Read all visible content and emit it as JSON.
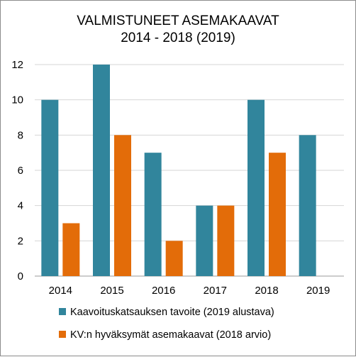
{
  "chart_data": {
    "type": "bar",
    "title_lines": [
      "VALMISTUNEET  ASEMAKAAVAT",
      "2014 - 2018 (2019)"
    ],
    "categories": [
      "2014",
      "2015",
      "2016",
      "2017",
      "2018",
      "2019"
    ],
    "series": [
      {
        "name": "Kaavoituskatsauksen tavoite (2019 alustava)",
        "color": "#31859c",
        "values": [
          10,
          12,
          7,
          4,
          10,
          8
        ]
      },
      {
        "name": "KV:n hyväksymät asemakaavat (2018 arvio)",
        "color": "#e36c09",
        "values": [
          3,
          8,
          2,
          4,
          7,
          null
        ]
      }
    ],
    "ylim": [
      0,
      12
    ],
    "yticks": [
      0,
      2,
      4,
      6,
      8,
      10,
      12
    ],
    "grid": true,
    "legend_position": "bottom"
  }
}
